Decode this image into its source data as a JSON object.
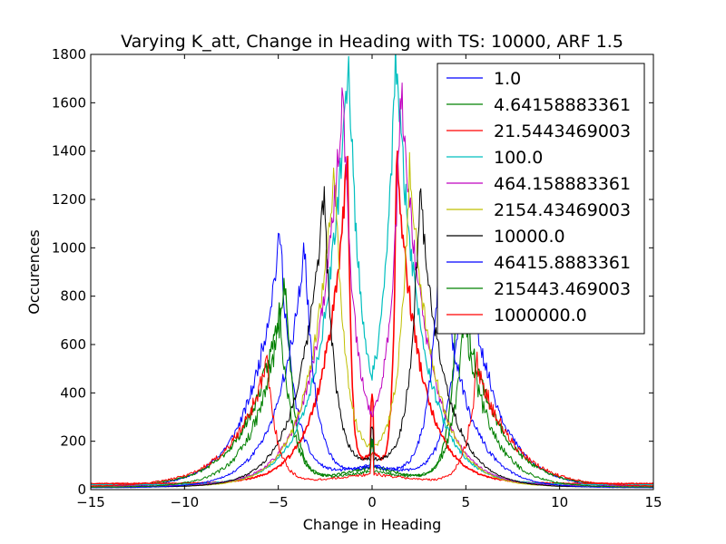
{
  "chart_data": {
    "type": "line",
    "title": "Varying K_att, Change in Heading with TS: 10000, ARF 1.5",
    "xlabel": "Change in Heading",
    "ylabel": "Occurences",
    "xlim": [
      -15,
      15
    ],
    "ylim": [
      0,
      1800
    ],
    "xticks": [
      -15,
      -10,
      -5,
      0,
      5,
      10,
      15
    ],
    "yticks": [
      0,
      200,
      400,
      600,
      800,
      1000,
      1200,
      1400,
      1600,
      1800
    ],
    "grid": false,
    "legend_position": "top-right",
    "series": [
      {
        "name": "1.0",
        "color": "#0000ff",
        "width": 1.0,
        "peak": 1050,
        "center": 4.9,
        "inner": 0.15,
        "outer": 0.2,
        "base": 8,
        "noise": 0.07,
        "seed": 11,
        "spike": 100
      },
      {
        "name": "4.64158883361",
        "color": "#008000",
        "width": 1.2,
        "peak": 880,
        "center": 4.6,
        "inner": 0.1,
        "outer": 0.25,
        "base": 12,
        "noise": 0.08,
        "seed": 23,
        "spike": 110
      },
      {
        "name": "21.5443469003",
        "color": "#ff0000",
        "width": 1.6,
        "peak": 1350,
        "center": 1.3,
        "inner": 0.15,
        "outer": 0.5,
        "base": 25,
        "noise": 0.06,
        "seed": 37,
        "spike": 220
      },
      {
        "name": "100.0",
        "color": "#00bfbf",
        "width": 1.2,
        "peak": 1780,
        "center": 1.25,
        "inner": 0.55,
        "outer": 0.6,
        "base": 20,
        "noise": 0.06,
        "seed": 41,
        "spike": 0
      },
      {
        "name": "464.158883361",
        "color": "#bf00bf",
        "width": 1.0,
        "peak": 1640,
        "center": 1.55,
        "inner": 0.42,
        "outer": 0.5,
        "base": 15,
        "noise": 0.06,
        "seed": 53,
        "spike": 0
      },
      {
        "name": "2154.43469003",
        "color": "#bfbf00",
        "width": 1.0,
        "peak": 1330,
        "center": 2.0,
        "inner": 0.3,
        "outer": 0.35,
        "base": 12,
        "noise": 0.06,
        "seed": 67,
        "spike": 0
      },
      {
        "name": "10000.0",
        "color": "#000000",
        "width": 1.0,
        "peak": 1220,
        "center": 2.55,
        "inner": 0.22,
        "outer": 0.28,
        "base": 10,
        "noise": 0.06,
        "seed": 79,
        "spike": 130
      },
      {
        "name": "46415.8883361",
        "color": "#0000ff",
        "width": 1.0,
        "peak": 1000,
        "center": 3.6,
        "inner": 0.17,
        "outer": 0.22,
        "base": 8,
        "noise": 0.07,
        "seed": 83,
        "spike": 100
      },
      {
        "name": "215443.469003",
        "color": "#008000",
        "width": 1.0,
        "peak": 700,
        "center": 4.9,
        "inner": 0.13,
        "outer": 0.16,
        "base": 10,
        "noise": 0.1,
        "seed": 97,
        "spike": 120
      },
      {
        "name": "1000000.0",
        "color": "#ff0000",
        "width": 1.0,
        "peak": 510,
        "center": 5.6,
        "inner": 0.1,
        "outer": 0.22,
        "base": 12,
        "noise": 0.1,
        "seed": 101,
        "spike": 90
      }
    ]
  }
}
